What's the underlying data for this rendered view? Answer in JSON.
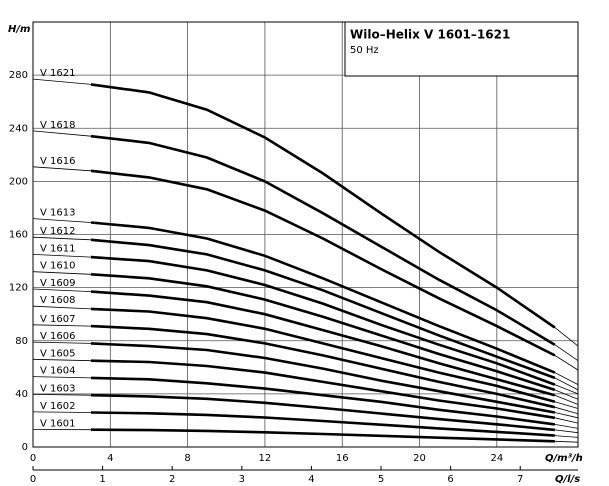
{
  "chart_data": {
    "type": "line",
    "title": "Wilo–Helix V 1601–1621",
    "subtitle": "50 Hz",
    "ylabel": "H/m",
    "xlabel": "Q/m³/h",
    "x2label": "Q/l/s",
    "xlim": [
      0,
      28.2
    ],
    "xticks": [
      0,
      4,
      8,
      12,
      16,
      20,
      24
    ],
    "x2lim": [
      0,
      7.83
    ],
    "x2ticks": [
      0,
      1,
      2,
      3,
      4,
      5,
      6,
      7
    ],
    "ylim": [
      0,
      320
    ],
    "yticks": [
      0,
      40,
      80,
      120,
      160,
      200,
      240,
      280
    ],
    "grid": true,
    "color": "#000000",
    "x": [
      0,
      3,
      6,
      9,
      12,
      15,
      18,
      21,
      24,
      27,
      28.2
    ],
    "series": [
      {
        "name": "V 1601",
        "values": [
          13.2,
          13.0,
          12.7,
          12.1,
          11.1,
          9.8,
          8.4,
          7.0,
          5.7,
          4.3,
          3.6
        ]
      },
      {
        "name": "V 1602",
        "values": [
          26.4,
          26.0,
          25.4,
          24.2,
          22.2,
          19.6,
          16.8,
          14.0,
          11.4,
          8.6,
          7.2
        ]
      },
      {
        "name": "V 1603",
        "values": [
          39.6,
          39.0,
          38.1,
          36.3,
          33.3,
          29.4,
          25.2,
          21.0,
          17.1,
          12.9,
          10.8
        ]
      },
      {
        "name": "V 1604",
        "values": [
          53,
          52,
          51,
          48,
          44,
          39,
          34,
          28,
          23,
          17,
          14
        ]
      },
      {
        "name": "V 1605",
        "values": [
          66,
          65,
          64,
          61,
          56,
          49,
          42,
          35,
          29,
          22,
          18
        ]
      },
      {
        "name": "V 1606",
        "values": [
          79,
          78,
          76,
          73,
          67,
          59,
          50,
          42,
          34,
          26,
          22
        ]
      },
      {
        "name": "V 1607",
        "values": [
          92,
          91,
          89,
          85,
          78,
          69,
          59,
          49,
          40,
          30,
          25
        ]
      },
      {
        "name": "V 1608",
        "values": [
          106,
          104,
          102,
          97,
          89,
          78,
          67,
          56,
          46,
          34,
          29
        ]
      },
      {
        "name": "V 1609",
        "values": [
          119,
          117,
          114,
          109,
          100,
          88,
          76,
          63,
          51,
          39,
          32
        ]
      },
      {
        "name": "V 1610",
        "values": [
          132,
          130,
          127,
          121,
          111,
          98,
          84,
          70,
          57,
          43,
          36
        ]
      },
      {
        "name": "V 1611",
        "values": [
          145,
          143,
          140,
          133,
          122,
          108,
          92,
          77,
          63,
          47,
          40
        ]
      },
      {
        "name": "V 1612",
        "values": [
          158,
          156,
          152,
          145,
          133,
          118,
          101,
          84,
          68,
          52,
          43
        ]
      },
      {
        "name": "V 1613",
        "values": [
          172,
          169,
          165,
          157,
          144,
          127,
          109,
          91,
          74,
          56,
          47
        ]
      },
      {
        "name": "V 1616",
        "values": [
          211,
          208,
          203,
          194,
          178,
          157,
          134,
          112,
          91,
          69,
          58
        ]
      },
      {
        "name": "V 1618",
        "values": [
          238,
          234,
          229,
          218,
          200,
          176,
          151,
          126,
          103,
          77,
          65
        ]
      },
      {
        "name": "V 1621",
        "values": [
          277,
          273,
          267,
          254,
          233,
          206,
          176,
          147,
          120,
          90,
          76
        ]
      }
    ]
  }
}
